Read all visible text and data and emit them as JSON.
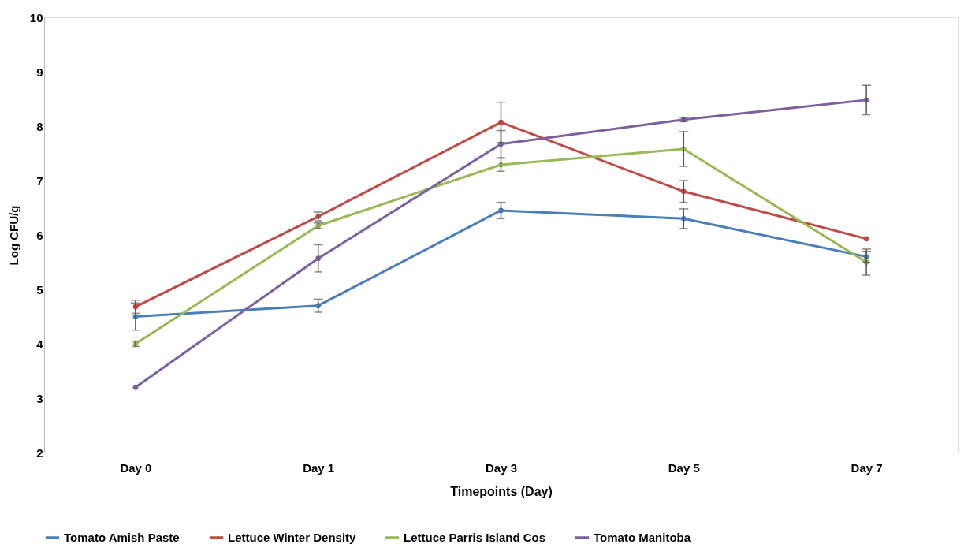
{
  "chart_data": {
    "type": "line",
    "xlabel": "Timepoints (Day)",
    "ylabel": "Log CFU/g",
    "categories": [
      "Day 0",
      "Day 1",
      "Day 3",
      "Day 5",
      "Day 7"
    ],
    "ylim": [
      2,
      10
    ],
    "yticks": [
      2,
      3,
      4,
      5,
      6,
      7,
      8,
      9,
      10
    ],
    "grid": false,
    "legend": "bottom",
    "marker": "circle",
    "line_style": "solid",
    "series": [
      {
        "name": "Tomato Amish Paste",
        "color": "#4a7ebb",
        "values": [
          4.5,
          4.7,
          6.45,
          6.3,
          5.6
        ],
        "errors": [
          0.25,
          0.12,
          0.15,
          0.18,
          0.1
        ]
      },
      {
        "name": "Lettuce Winter Density",
        "color": "#be4b48",
        "values": [
          4.68,
          6.34,
          8.07,
          6.8,
          5.93
        ],
        "errors": [
          0.12,
          0.08,
          0.37,
          0.2,
          null
        ]
      },
      {
        "name": "Lettuce Parris Island Cos",
        "color": "#98b954",
        "values": [
          4.0,
          6.17,
          7.29,
          7.58,
          5.5
        ],
        "errors": [
          0.05,
          0.05,
          0.12,
          0.32,
          0.24
        ]
      },
      {
        "name": "Tomato Manitoba",
        "color": "#7d60a0",
        "values": [
          3.2,
          5.57,
          7.67,
          8.12,
          8.48
        ],
        "errors": [
          null,
          0.25,
          0.25,
          0.04,
          0.27
        ]
      }
    ]
  }
}
